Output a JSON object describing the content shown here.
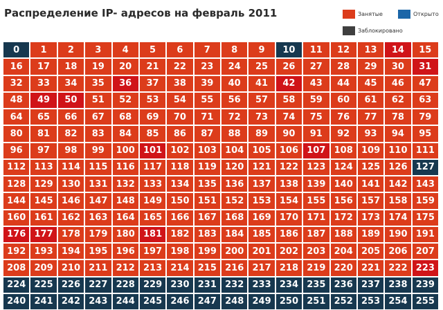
{
  "title": "Распределение IP- адресов на февраль 2011",
  "legend": [
    {
      "key": "occupied",
      "label": "Занятые",
      "color": "#dc3c1b"
    },
    {
      "key": "open",
      "label": "Открыто",
      "color": "#1b66a8"
    },
    {
      "key": "blocked",
      "label": "Заблокировано",
      "color": "#3f3f3f"
    }
  ],
  "chart_data": {
    "type": "table",
    "title": "Распределение IP- адресов на февраль 2011",
    "columns": 16,
    "range": [
      0,
      255
    ],
    "blocked": [
      0,
      10,
      127,
      224,
      225,
      226,
      227,
      228,
      229,
      230,
      231,
      232,
      233,
      234,
      235,
      236,
      237,
      238,
      239,
      240,
      241,
      242,
      243,
      244,
      245,
      246,
      247,
      248,
      249,
      250,
      251,
      252,
      253,
      254,
      255
    ],
    "highlighted": [
      14,
      31,
      36,
      42,
      49,
      50,
      101,
      107,
      176,
      177,
      181,
      223
    ],
    "open": []
  }
}
